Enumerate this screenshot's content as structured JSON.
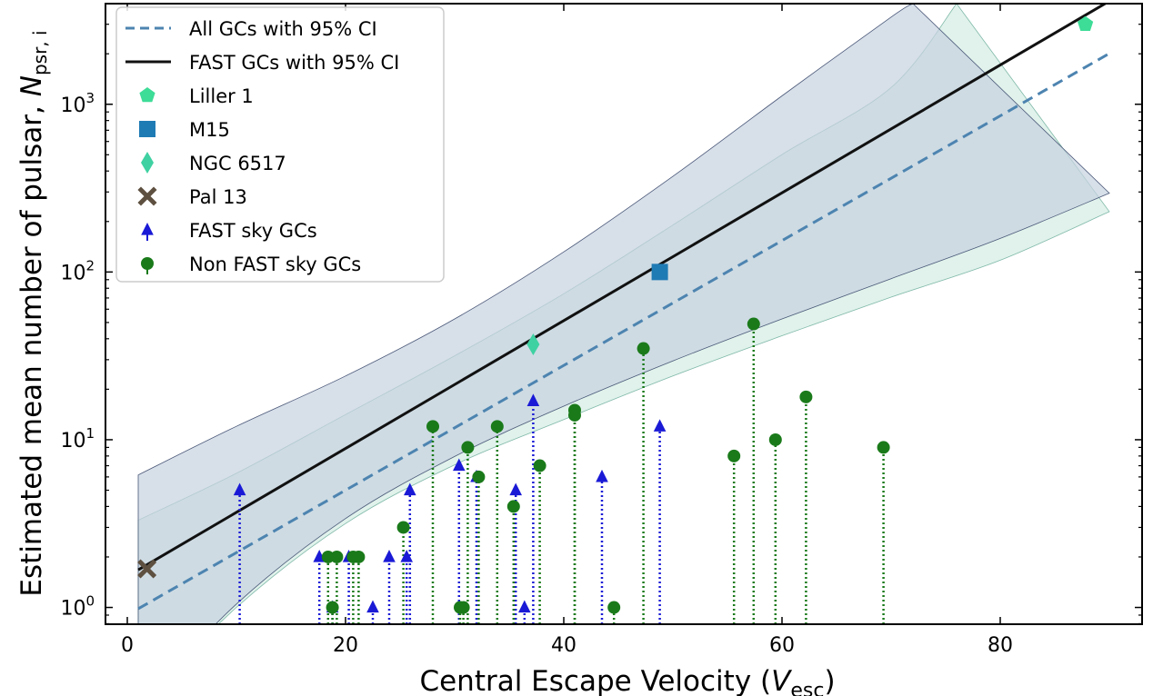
{
  "chart_data": {
    "type": "scatter",
    "xlabel": "Central Escape Velocity (",
    "xlabel_symbol": "V",
    "xlabel_sub": "esc",
    "xlabel_close": ")",
    "ylabel": "Estimated mean number of pulsar, ",
    "ylabel_symbol": "N",
    "ylabel_sub": "psr, i",
    "xlim": [
      -2,
      93
    ],
    "ylim_log10": [
      -0.1,
      3.6
    ],
    "yscale": "log",
    "x_ticks": [
      0,
      20,
      40,
      60,
      80
    ],
    "x_tick_labels": [
      "0",
      "20",
      "40",
      "60",
      "80"
    ],
    "y_ticks": [
      1,
      10,
      100,
      1000
    ],
    "y_tick_labels": [
      {
        "base": "10",
        "exp": "0"
      },
      {
        "base": "10",
        "exp": "1"
      },
      {
        "base": "10",
        "exp": "2"
      },
      {
        "base": "10",
        "exp": "3"
      }
    ],
    "legend": [
      {
        "label": "All GCs with 95% CI",
        "kind": "dashed-line",
        "color": "#4d84b0"
      },
      {
        "label": "FAST GCs with 95% CI",
        "kind": "solid-line",
        "color": "#111111"
      },
      {
        "label": "Liller 1",
        "kind": "pentagon",
        "color": "#3ddc97"
      },
      {
        "label": "M15",
        "kind": "square",
        "color": "#1f7bb4"
      },
      {
        "label": "NGC 6517",
        "kind": "diamond",
        "color": "#3fd1a2"
      },
      {
        "label": "Pal 13",
        "kind": "cross",
        "color": "#5e5040"
      },
      {
        "label": "FAST sky GCs",
        "kind": "triangle-stem",
        "color": "#1a1ad6"
      },
      {
        "label": "Non FAST sky GCs",
        "kind": "circle-stem",
        "color": "#1a7a1a"
      }
    ],
    "fits": {
      "x_range": [
        1,
        90
      ],
      "all_gcs": {
        "log10_intercept": -0.045,
        "slope_log10_per_unit": 0.0372,
        "color": "#4d84b0",
        "ci_lower_log10": [
          [
            1,
            -0.6
          ],
          [
            10,
            0.0
          ],
          [
            20,
            0.5
          ],
          [
            30,
            0.85
          ],
          [
            40,
            1.12
          ],
          [
            50,
            1.38
          ],
          [
            60,
            1.62
          ],
          [
            70,
            1.85
          ],
          [
            80,
            2.07
          ],
          [
            90,
            2.36
          ]
        ],
        "ci_upper_log10": [
          [
            1,
            0.52
          ],
          [
            10,
            0.8
          ],
          [
            20,
            1.15
          ],
          [
            30,
            1.5
          ],
          [
            40,
            1.87
          ],
          [
            50,
            2.28
          ],
          [
            60,
            2.7
          ],
          [
            70,
            3.1
          ],
          [
            76,
            3.6
          ]
        ],
        "fill": "#d5eee4"
      },
      "fast_gcs": {
        "log10_intercept": 0.186,
        "slope_log10_per_unit": 0.0381,
        "color": "#111111",
        "ci_lower_log10": [
          [
            1,
            -0.6
          ],
          [
            10,
            0.02
          ],
          [
            20,
            0.53
          ],
          [
            30,
            0.9
          ],
          [
            40,
            1.2
          ],
          [
            50,
            1.47
          ],
          [
            60,
            1.72
          ],
          [
            70,
            1.96
          ],
          [
            80,
            2.2
          ],
          [
            90,
            2.47
          ]
        ],
        "ci_upper_log10": [
          [
            1,
            0.79
          ],
          [
            10,
            1.08
          ],
          [
            20,
            1.38
          ],
          [
            30,
            1.72
          ],
          [
            40,
            2.12
          ],
          [
            50,
            2.57
          ],
          [
            60,
            3.05
          ],
          [
            70,
            3.52
          ],
          [
            72,
            3.6
          ]
        ],
        "fill": "#c6d1e0"
      }
    },
    "highlighted": [
      {
        "name": "Liller 1",
        "x": 87.8,
        "y": 3000,
        "marker": "pentagon",
        "color": "#3ddc97"
      },
      {
        "name": "M15",
        "x": 48.8,
        "y": 100,
        "marker": "square",
        "color": "#1f7bb4"
      },
      {
        "name": "NGC 6517",
        "x": 37.2,
        "y": 37,
        "marker": "diamond",
        "color": "#3fd1a2"
      },
      {
        "name": "Pal 13",
        "x": 1.8,
        "y": 1.7,
        "marker": "cross",
        "color": "#5e5040"
      }
    ],
    "series": [
      {
        "name": "FAST sky GCs",
        "marker": "triangle",
        "color": "#1a1ad6",
        "points": [
          [
            10.3,
            5
          ],
          [
            17.6,
            2
          ],
          [
            18.8,
            1
          ],
          [
            20.3,
            2
          ],
          [
            22.5,
            1
          ],
          [
            24.0,
            2
          ],
          [
            25.6,
            2
          ],
          [
            25.9,
            5
          ],
          [
            30.4,
            7
          ],
          [
            32.0,
            6
          ],
          [
            35.6,
            5
          ],
          [
            36.4,
            1
          ],
          [
            37.2,
            17
          ],
          [
            43.5,
            6
          ],
          [
            48.8,
            12
          ]
        ]
      },
      {
        "name": "Non FAST sky GCs",
        "marker": "circle",
        "color": "#1a7a1a",
        "points": [
          [
            18.4,
            2
          ],
          [
            18.8,
            1
          ],
          [
            19.2,
            2
          ],
          [
            20.7,
            2
          ],
          [
            21.2,
            2
          ],
          [
            25.3,
            3
          ],
          [
            28.0,
            12
          ],
          [
            30.5,
            1
          ],
          [
            30.8,
            1
          ],
          [
            31.2,
            9
          ],
          [
            32.2,
            6
          ],
          [
            33.9,
            12
          ],
          [
            35.4,
            4
          ],
          [
            37.8,
            7
          ],
          [
            41.0,
            15
          ],
          [
            41.0,
            14
          ],
          [
            44.6,
            1
          ],
          [
            47.3,
            35
          ],
          [
            55.6,
            8
          ],
          [
            57.4,
            49
          ],
          [
            59.4,
            10
          ],
          [
            62.2,
            18
          ],
          [
            69.3,
            9
          ]
        ]
      }
    ]
  }
}
